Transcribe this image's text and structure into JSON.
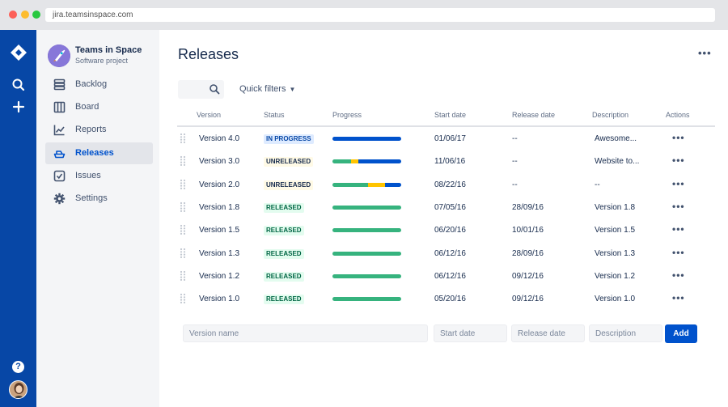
{
  "browser": {
    "url": "jira.teamsinspace.com"
  },
  "project": {
    "name": "Teams in Space",
    "type": "Software project"
  },
  "sidebar": {
    "items": [
      {
        "label": "Backlog",
        "icon": "backlog-icon"
      },
      {
        "label": "Board",
        "icon": "board-icon"
      },
      {
        "label": "Reports",
        "icon": "reports-icon"
      },
      {
        "label": "Releases",
        "icon": "releases-icon",
        "active": true
      },
      {
        "label": "Issues",
        "icon": "issues-icon"
      },
      {
        "label": "Settings",
        "icon": "settings-icon"
      }
    ]
  },
  "page": {
    "title": "Releases",
    "more": "•••"
  },
  "filters": {
    "quick_filters": "Quick filters"
  },
  "table": {
    "headers": {
      "version": "Version",
      "status": "Status",
      "progress": "Progress",
      "start_date": "Start date",
      "release_date": "Release date",
      "description": "Description",
      "actions": "Actions"
    },
    "rows": [
      {
        "version": "Version 4.0",
        "status": "IN PROGRESS",
        "status_kind": "inprogress",
        "progress": {
          "done": 0,
          "in_progress": 0,
          "todo": 1.0
        },
        "start": "01/06/17",
        "release": "--",
        "description": "Awesome...",
        "actions": "•••"
      },
      {
        "version": "Version 3.0",
        "status": "UNRELEASED",
        "status_kind": "unreleased",
        "progress": {
          "done": 0.27,
          "in_progress": 0.11,
          "todo": 0.62
        },
        "start": "11/06/16",
        "release": "--",
        "description": "Website to...",
        "actions": "•••"
      },
      {
        "version": "Version 2.0",
        "status": "UNRELEASED",
        "status_kind": "unreleased",
        "progress": {
          "done": 0.52,
          "in_progress": 0.25,
          "todo": 0.23
        },
        "start": "08/22/16",
        "release": "--",
        "description": "--",
        "actions": "•••"
      },
      {
        "version": "Version 1.8",
        "status": "RELEASED",
        "status_kind": "released",
        "progress": {
          "done": 1.0,
          "in_progress": 0,
          "todo": 0
        },
        "start": "07/05/16",
        "release": "28/09/16",
        "description": "Version 1.8",
        "actions": "•••"
      },
      {
        "version": "Version 1.5",
        "status": "RELEASED",
        "status_kind": "released",
        "progress": {
          "done": 1.0,
          "in_progress": 0,
          "todo": 0
        },
        "start": "06/20/16",
        "release": "10/01/16",
        "description": "Version 1.5",
        "actions": "•••"
      },
      {
        "version": "Version 1.3",
        "status": "RELEASED",
        "status_kind": "released",
        "progress": {
          "done": 1.0,
          "in_progress": 0,
          "todo": 0
        },
        "start": "06/12/16",
        "release": "28/09/16",
        "description": "Version 1.3",
        "actions": "•••"
      },
      {
        "version": "Version 1.2",
        "status": "RELEASED",
        "status_kind": "released",
        "progress": {
          "done": 1.0,
          "in_progress": 0,
          "todo": 0
        },
        "start": "06/12/16",
        "release": "09/12/16",
        "description": "Version 1.2",
        "actions": "•••"
      },
      {
        "version": "Version 1.0",
        "status": "RELEASED",
        "status_kind": "released",
        "progress": {
          "done": 1.0,
          "in_progress": 0,
          "todo": 0
        },
        "start": "05/20/16",
        "release": "09/12/16",
        "description": "Version 1.0",
        "actions": "•••"
      }
    ]
  },
  "new_version": {
    "name_placeholder": "Version name",
    "start_placeholder": "Start date",
    "release_placeholder": "Release date",
    "description_placeholder": "Description",
    "add_label": "Add"
  },
  "global_nav": {
    "help": "?"
  },
  "colors": {
    "done": "#36b37e",
    "in_progress": "#ffc400",
    "todo": "#0052cc",
    "brand": "#0747a6"
  }
}
